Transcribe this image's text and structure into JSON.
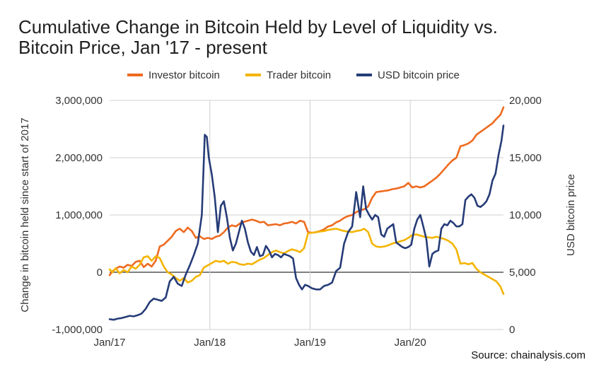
{
  "source": "Source: chainalysis.com",
  "chart_data": {
    "type": "line",
    "title_line1": "Cumulative Change in Bitcoin Held by Level of Liquidity vs.",
    "title_line2": "Bitcoin Price, Jan '17 - present",
    "ylabel_left": "Change in bitcoin held since start of 2017",
    "ylabel_right": "USD bitcoin price",
    "ylim_left": [
      -1000000,
      3000000
    ],
    "ylim_right": [
      0,
      20000
    ],
    "left_ticks": [
      {
        "value": 3000000,
        "label": "3,000,000"
      },
      {
        "value": 2000000,
        "label": "2,000,000"
      },
      {
        "value": 1000000,
        "label": "1,000,000"
      },
      {
        "value": 0,
        "label": "0"
      },
      {
        "value": -1000000,
        "label": "-1,000,000"
      }
    ],
    "right_ticks": [
      {
        "value": 20000,
        "label": "20,000"
      },
      {
        "value": 15000,
        "label": "15,000"
      },
      {
        "value": 10000,
        "label": "10,000"
      },
      {
        "value": 5000,
        "label": "5,000"
      },
      {
        "value": 0,
        "label": "0"
      }
    ],
    "xlim": [
      2017.0,
      2020.93
    ],
    "x_ticks": [
      {
        "value": 2017.0,
        "label": "Jan/17"
      },
      {
        "value": 2018.0,
        "label": "Jan/18"
      },
      {
        "value": 2019.0,
        "label": "Jan/19"
      },
      {
        "value": 2020.0,
        "label": "Jan/20"
      }
    ],
    "legend_position": "top",
    "series": [
      {
        "name": "Investor bitcoin",
        "axis": "left",
        "color": "#ee6a1f",
        "x": [
          2017.0,
          2017.03,
          2017.06,
          2017.1,
          2017.14,
          2017.18,
          2017.22,
          2017.26,
          2017.3,
          2017.34,
          2017.38,
          2017.42,
          2017.46,
          2017.5,
          2017.54,
          2017.58,
          2017.62,
          2017.66,
          2017.7,
          2017.74,
          2017.78,
          2017.82,
          2017.86,
          2017.9,
          2017.94,
          2017.98,
          2018.02,
          2018.06,
          2018.1,
          2018.14,
          2018.18,
          2018.22,
          2018.26,
          2018.3,
          2018.34,
          2018.38,
          2018.42,
          2018.46,
          2018.5,
          2018.54,
          2018.58,
          2018.62,
          2018.66,
          2018.7,
          2018.74,
          2018.78,
          2018.82,
          2018.86,
          2018.9,
          2018.94,
          2018.98,
          2019.02,
          2019.06,
          2019.1,
          2019.14,
          2019.18,
          2019.22,
          2019.26,
          2019.3,
          2019.34,
          2019.38,
          2019.42,
          2019.46,
          2019.5,
          2019.54,
          2019.58,
          2019.62,
          2019.66,
          2019.7,
          2019.74,
          2019.78,
          2019.82,
          2019.86,
          2019.9,
          2019.94,
          2019.98,
          2020.02,
          2020.06,
          2020.1,
          2020.14,
          2020.18,
          2020.22,
          2020.26,
          2020.3,
          2020.34,
          2020.38,
          2020.42,
          2020.46,
          2020.5,
          2020.54,
          2020.58,
          2020.62,
          2020.66,
          2020.7,
          2020.74,
          2020.78,
          2020.82,
          2020.86,
          2020.9,
          2020.93
        ],
        "y": [
          -50000,
          20000,
          60000,
          100000,
          80000,
          130000,
          110000,
          180000,
          200000,
          90000,
          150000,
          100000,
          200000,
          450000,
          480000,
          550000,
          620000,
          720000,
          760000,
          700000,
          780000,
          720000,
          600000,
          630000,
          580000,
          600000,
          580000,
          620000,
          640000,
          700000,
          780000,
          820000,
          800000,
          850000,
          880000,
          900000,
          920000,
          900000,
          870000,
          880000,
          820000,
          830000,
          840000,
          820000,
          850000,
          860000,
          880000,
          850000,
          900000,
          880000,
          700000,
          690000,
          700000,
          720000,
          750000,
          800000,
          820000,
          870000,
          900000,
          950000,
          980000,
          1000000,
          1050000,
          1080000,
          1100000,
          1150000,
          1300000,
          1400000,
          1410000,
          1420000,
          1430000,
          1450000,
          1460000,
          1480000,
          1500000,
          1560000,
          1480000,
          1500000,
          1480000,
          1500000,
          1550000,
          1600000,
          1650000,
          1720000,
          1800000,
          1880000,
          1950000,
          2000000,
          2200000,
          2220000,
          2250000,
          2300000,
          2400000,
          2450000,
          2500000,
          2550000,
          2600000,
          2680000,
          2750000,
          2880000
        ]
      },
      {
        "name": "Trader bitcoin",
        "axis": "left",
        "color": "#f4b400",
        "x": [
          2017.0,
          2017.03,
          2017.06,
          2017.1,
          2017.14,
          2017.18,
          2017.22,
          2017.26,
          2017.3,
          2017.34,
          2017.38,
          2017.42,
          2017.46,
          2017.5,
          2017.54,
          2017.58,
          2017.62,
          2017.66,
          2017.7,
          2017.74,
          2017.78,
          2017.82,
          2017.86,
          2017.9,
          2017.94,
          2017.98,
          2018.02,
          2018.06,
          2018.1,
          2018.14,
          2018.18,
          2018.22,
          2018.26,
          2018.3,
          2018.34,
          2018.38,
          2018.42,
          2018.46,
          2018.5,
          2018.54,
          2018.58,
          2018.62,
          2018.66,
          2018.7,
          2018.74,
          2018.78,
          2018.82,
          2018.86,
          2018.9,
          2018.94,
          2018.98,
          2019.02,
          2019.06,
          2019.1,
          2019.14,
          2019.18,
          2019.22,
          2019.26,
          2019.3,
          2019.34,
          2019.38,
          2019.42,
          2019.46,
          2019.5,
          2019.54,
          2019.58,
          2019.62,
          2019.66,
          2019.7,
          2019.74,
          2019.78,
          2019.82,
          2019.86,
          2019.9,
          2019.94,
          2019.98,
          2020.02,
          2020.06,
          2020.1,
          2020.14,
          2020.18,
          2020.22,
          2020.26,
          2020.3,
          2020.34,
          2020.38,
          2020.42,
          2020.46,
          2020.5,
          2020.54,
          2020.58,
          2020.62,
          2020.66,
          2020.7,
          2020.74,
          2020.78,
          2020.82,
          2020.86,
          2020.9,
          2020.93
        ],
        "y": [
          50000,
          0,
          70000,
          -20000,
          40000,
          0,
          100000,
          60000,
          130000,
          260000,
          280000,
          200000,
          280000,
          250000,
          100000,
          0,
          -40000,
          -100000,
          -150000,
          -100000,
          -180000,
          -150000,
          -80000,
          -50000,
          80000,
          120000,
          160000,
          200000,
          180000,
          200000,
          150000,
          180000,
          170000,
          140000,
          130000,
          150000,
          140000,
          180000,
          220000,
          250000,
          300000,
          350000,
          380000,
          350000,
          330000,
          370000,
          400000,
          380000,
          350000,
          420000,
          680000,
          690000,
          700000,
          710000,
          720000,
          740000,
          750000,
          760000,
          740000,
          720000,
          710000,
          700000,
          720000,
          730000,
          760000,
          700000,
          500000,
          450000,
          440000,
          450000,
          470000,
          500000,
          520000,
          540000,
          560000,
          600000,
          650000,
          660000,
          640000,
          620000,
          610000,
          600000,
          620000,
          600000,
          580000,
          550000,
          500000,
          400000,
          150000,
          160000,
          140000,
          160000,
          60000,
          0,
          -40000,
          -80000,
          -120000,
          -160000,
          -250000,
          -380000
        ]
      },
      {
        "name": "USD bitcoin price",
        "axis": "right",
        "color": "#263c78",
        "x": [
          2017.0,
          2017.04,
          2017.08,
          2017.12,
          2017.16,
          2017.2,
          2017.24,
          2017.28,
          2017.32,
          2017.36,
          2017.4,
          2017.44,
          2017.48,
          2017.52,
          2017.56,
          2017.6,
          2017.64,
          2017.68,
          2017.72,
          2017.76,
          2017.8,
          2017.84,
          2017.88,
          2017.92,
          2017.95,
          2017.97,
          2017.99,
          2018.02,
          2018.05,
          2018.08,
          2018.11,
          2018.14,
          2018.17,
          2018.2,
          2018.23,
          2018.26,
          2018.29,
          2018.32,
          2018.35,
          2018.38,
          2018.41,
          2018.44,
          2018.47,
          2018.5,
          2018.53,
          2018.56,
          2018.59,
          2018.62,
          2018.65,
          2018.68,
          2018.71,
          2018.74,
          2018.77,
          2018.8,
          2018.83,
          2018.86,
          2018.89,
          2018.92,
          2018.95,
          2018.98,
          2019.02,
          2019.06,
          2019.1,
          2019.14,
          2019.18,
          2019.22,
          2019.26,
          2019.3,
          2019.34,
          2019.38,
          2019.42,
          2019.46,
          2019.5,
          2019.53,
          2019.56,
          2019.59,
          2019.62,
          2019.65,
          2019.68,
          2019.71,
          2019.74,
          2019.77,
          2019.8,
          2019.83,
          2019.86,
          2019.89,
          2019.92,
          2019.95,
          2019.98,
          2020.01,
          2020.04,
          2020.07,
          2020.1,
          2020.13,
          2020.16,
          2020.19,
          2020.22,
          2020.25,
          2020.28,
          2020.31,
          2020.34,
          2020.37,
          2020.4,
          2020.43,
          2020.46,
          2020.49,
          2020.52,
          2020.55,
          2020.58,
          2020.61,
          2020.64,
          2020.67,
          2020.7,
          2020.73,
          2020.76,
          2020.79,
          2020.82,
          2020.85,
          2020.88,
          2020.91,
          2020.93
        ],
        "y": [
          900,
          850,
          950,
          1000,
          1100,
          1200,
          1150,
          1250,
          1400,
          1800,
          2400,
          2700,
          2600,
          2500,
          2800,
          4200,
          4600,
          4000,
          3800,
          4800,
          5600,
          6500,
          7500,
          10000,
          17000,
          16800,
          15000,
          13500,
          11500,
          8500,
          10800,
          11200,
          9800,
          8000,
          6900,
          7500,
          8500,
          9500,
          8800,
          7600,
          6800,
          6500,
          7200,
          6400,
          6500,
          7300,
          6900,
          6300,
          6600,
          6500,
          6300,
          6600,
          6500,
          6400,
          6200,
          4500,
          3900,
          3500,
          3900,
          3800,
          3600,
          3500,
          3500,
          3800,
          3900,
          4100,
          5100,
          5400,
          7500,
          8500,
          9000,
          12000,
          9800,
          12500,
          10500,
          10000,
          9600,
          10000,
          9800,
          8300,
          8100,
          8800,
          9000,
          9200,
          7600,
          7400,
          7200,
          7100,
          7200,
          7400,
          8800,
          9600,
          10000,
          9000,
          7900,
          5500,
          6600,
          6800,
          6900,
          8800,
          9200,
          9100,
          9500,
          9300,
          9000,
          9000,
          9200,
          11300,
          11600,
          11800,
          11500,
          10800,
          10700,
          10900,
          11200,
          11800,
          13000,
          13600,
          15200,
          16500,
          17800
        ]
      }
    ]
  }
}
